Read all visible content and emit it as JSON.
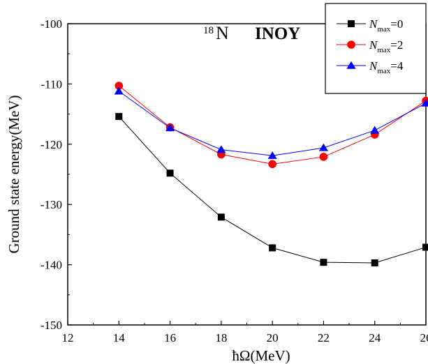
{
  "chart_data": {
    "type": "line",
    "title": {
      "mass_number": "18",
      "nucleus": "N",
      "interaction": "INOY"
    },
    "xlabel": "ħΩ(MeV)",
    "ylabel": "Ground state energy(MeV)",
    "xlim": [
      12,
      26
    ],
    "ylim": [
      -150,
      -100
    ],
    "x_ticks": [
      12,
      14,
      16,
      18,
      20,
      22,
      24,
      26
    ],
    "y_ticks": [
      -100,
      -110,
      -120,
      -130,
      -140,
      -150
    ],
    "grid": false,
    "legend_position": "top-right",
    "x": [
      14,
      16,
      18,
      20,
      22,
      24,
      26
    ],
    "series": [
      {
        "name_main": "N",
        "name_sub": "max",
        "name_value": "=0",
        "color": "#000000",
        "marker": "square",
        "values": [
          -115.4,
          -124.8,
          -132.1,
          -137.2,
          -139.6,
          -139.7,
          -137.1
        ]
      },
      {
        "name_main": "N",
        "name_sub": "max",
        "name_value": "=2",
        "color": "#ff0000",
        "marker": "circle",
        "values": [
          -110.3,
          -117.2,
          -121.7,
          -123.3,
          -122.1,
          -118.4,
          -112.8
        ]
      },
      {
        "name_main": "N",
        "name_sub": "max",
        "name_value": "=4",
        "color": "#0000ff",
        "marker": "triangle",
        "values": [
          -111.2,
          -117.3,
          -120.9,
          -121.9,
          -120.6,
          -117.7,
          -113.2
        ]
      }
    ]
  }
}
